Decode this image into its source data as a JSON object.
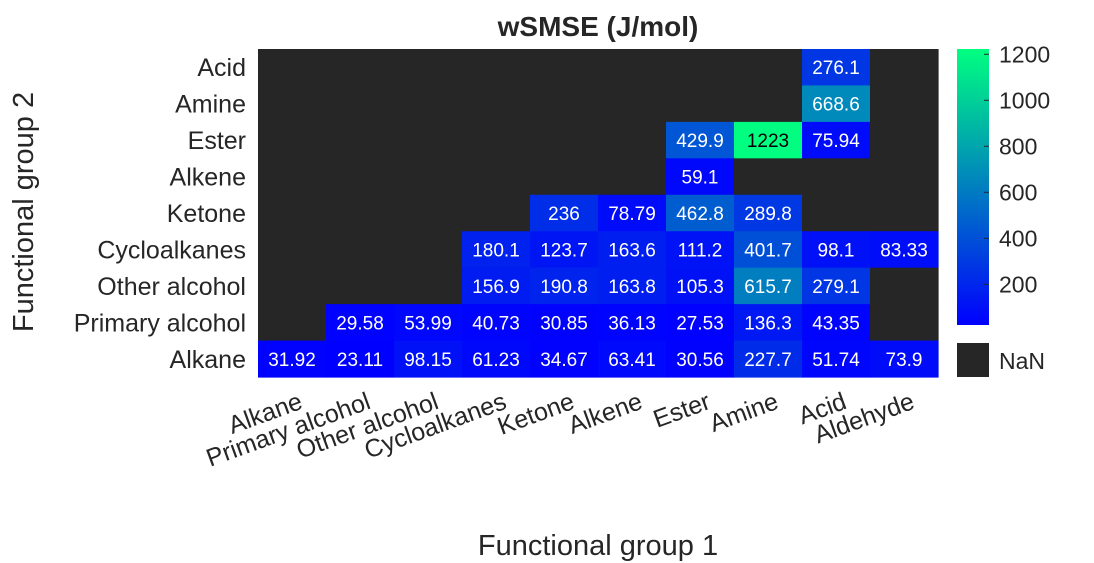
{
  "chart_data": {
    "type": "heatmap",
    "title": "wSMSE (J/mol)",
    "xlabel": "Functional group 1",
    "ylabel": "Functional group 2",
    "x_categories": [
      "Alkane",
      "Primary alcohol",
      "Other alcohol",
      "Cycloalkanes",
      "Ketone",
      "Alkene",
      "Ester",
      "Amine",
      "Acid",
      "Aldehyde"
    ],
    "y_categories": [
      "Acid",
      "Amine",
      "Ester",
      "Alkene",
      "Ketone",
      "Cycloalkanes",
      "Other alcohol",
      "Primary alcohol",
      "Alkane"
    ],
    "values": [
      [
        null,
        null,
        null,
        null,
        null,
        null,
        null,
        null,
        276.1,
        null
      ],
      [
        null,
        null,
        null,
        null,
        null,
        null,
        null,
        null,
        668.6,
        null
      ],
      [
        null,
        null,
        null,
        null,
        null,
        null,
        429.9,
        1223,
        75.94,
        null
      ],
      [
        null,
        null,
        null,
        null,
        null,
        null,
        59.1,
        null,
        null,
        null
      ],
      [
        null,
        null,
        null,
        null,
        236,
        78.79,
        462.8,
        289.8,
        null,
        null
      ],
      [
        null,
        null,
        null,
        180.1,
        123.7,
        163.6,
        111.2,
        401.7,
        98.1,
        83.33
      ],
      [
        null,
        null,
        null,
        156.9,
        190.8,
        163.8,
        105.3,
        615.7,
        279.1,
        null
      ],
      [
        null,
        29.58,
        53.99,
        40.73,
        30.85,
        36.13,
        27.53,
        136.3,
        43.35,
        null
      ],
      [
        31.92,
        23.11,
        98.15,
        61.23,
        34.67,
        63.41,
        30.56,
        227.7,
        51.74,
        73.9
      ]
    ],
    "value_labels": [
      [
        null,
        null,
        null,
        null,
        null,
        null,
        null,
        null,
        "276.1",
        null
      ],
      [
        null,
        null,
        null,
        null,
        null,
        null,
        null,
        null,
        "668.6",
        null
      ],
      [
        null,
        null,
        null,
        null,
        null,
        null,
        "429.9",
        "1223",
        "75.94",
        null
      ],
      [
        null,
        null,
        null,
        null,
        null,
        null,
        "59.1",
        null,
        null,
        null
      ],
      [
        null,
        null,
        null,
        null,
        "236",
        "78.79",
        "462.8",
        "289.8",
        null,
        null
      ],
      [
        null,
        null,
        null,
        "180.1",
        "123.7",
        "163.6",
        "111.2",
        "401.7",
        "98.1",
        "83.33"
      ],
      [
        null,
        null,
        null,
        "156.9",
        "190.8",
        "163.8",
        "105.3",
        "615.7",
        "279.1",
        null
      ],
      [
        null,
        "29.58",
        "53.99",
        "40.73",
        "30.85",
        "36.13",
        "27.53",
        "136.3",
        "43.35",
        null
      ],
      [
        "31.92",
        "23.11",
        "98.15",
        "61.23",
        "34.67",
        "63.41",
        "30.56",
        "227.7",
        "51.74",
        "73.9"
      ]
    ],
    "colorbar": {
      "colormap": "winter",
      "range": [
        23.11,
        1223
      ],
      "ticks": [
        200,
        400,
        600,
        800,
        1000,
        1200
      ],
      "tick_labels": [
        "200",
        "400",
        "600",
        "800",
        "1000",
        "1200"
      ],
      "nan_label": "NaN"
    },
    "colors": {
      "nan": "#262626",
      "cmap_low": "#0000ff",
      "cmap_high": "#00ff80",
      "text_on_dark": "#ffffff",
      "text_on_light": "#000000"
    }
  }
}
